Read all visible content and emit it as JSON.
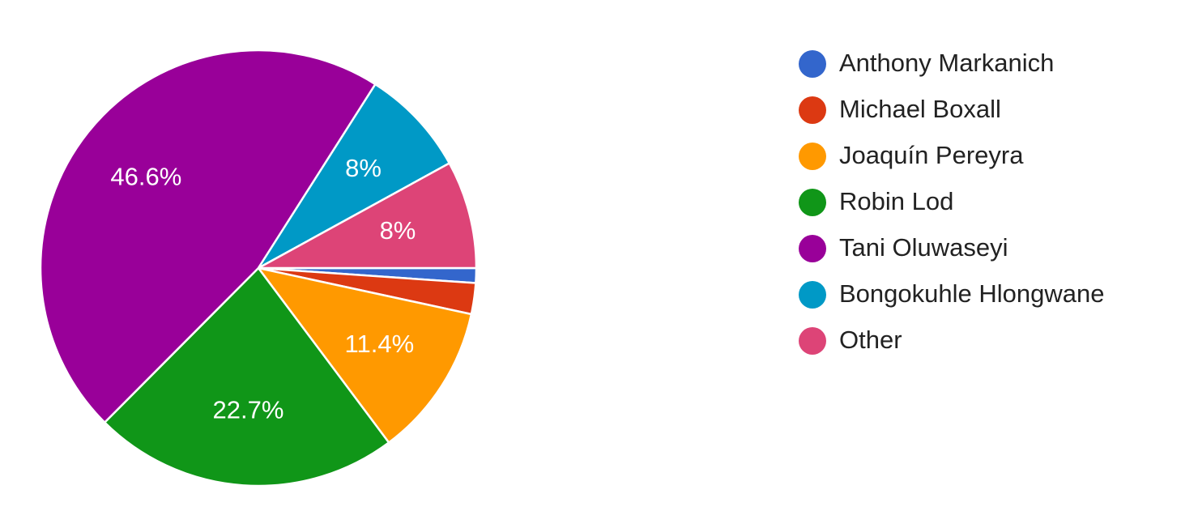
{
  "chart_data": {
    "type": "pie",
    "categories": [
      "Anthony Markanich",
      "Michael Boxall",
      "Joaquín Pereyra",
      "Robin Lod",
      "Tani Oluwaseyi",
      "Bongokuhle Hlongwane",
      "Other"
    ],
    "values": [
      1.1,
      2.3,
      11.4,
      22.7,
      46.6,
      8,
      8
    ],
    "value_labels": [
      null,
      null,
      "11.4%",
      "22.7%",
      "46.6%",
      "8%",
      "8%"
    ],
    "colors": [
      "#3366cc",
      "#dc3912",
      "#ff9900",
      "#109618",
      "#990099",
      "#0099c6",
      "#dd4477"
    ],
    "legend": "right"
  }
}
